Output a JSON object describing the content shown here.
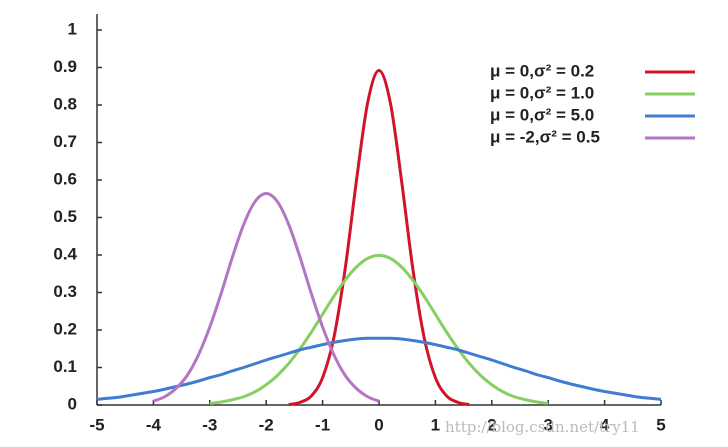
{
  "chart_data": {
    "type": "line",
    "x": [
      -5,
      -4.8,
      -4.6,
      -4.4,
      -4.2,
      -4,
      -3.8,
      -3.6,
      -3.4,
      -3.2,
      -3,
      -2.8,
      -2.6,
      -2.4,
      -2.2,
      -2,
      -1.8,
      -1.6,
      -1.4,
      -1.2,
      -1,
      -0.8,
      -0.6,
      -0.4,
      -0.2,
      0,
      0.2,
      0.4,
      0.6,
      0.8,
      1,
      1.2,
      1.4,
      1.6,
      1.8,
      2,
      2.2,
      2.4,
      2.6,
      2.8,
      3,
      3.2,
      3.4,
      3.6,
      3.8,
      4,
      4.2,
      4.4,
      4.6,
      4.8,
      5
    ],
    "series": [
      {
        "name": "μ = 0,σ² = 0.2",
        "color": "#d2142a",
        "values": [
          null,
          null,
          null,
          null,
          null,
          null,
          null,
          null,
          null,
          null,
          null,
          null,
          null,
          null,
          null,
          null,
          null,
          0.001,
          0.007,
          0.024,
          0.073,
          0.18,
          0.363,
          0.598,
          0.807,
          0.892,
          0.807,
          0.598,
          0.363,
          0.18,
          0.073,
          0.024,
          0.007,
          0.001,
          null,
          null,
          null,
          null,
          null,
          null,
          null,
          null,
          null,
          null,
          null,
          null,
          null,
          null,
          null,
          null,
          null
        ]
      },
      {
        "name": "μ = 0,σ² = 1.0",
        "color": "#86cf62",
        "values": [
          null,
          null,
          null,
          null,
          null,
          null,
          null,
          null,
          null,
          null,
          0.004,
          0.008,
          0.014,
          0.022,
          0.035,
          0.054,
          0.079,
          0.111,
          0.15,
          0.194,
          0.242,
          0.29,
          0.333,
          0.368,
          0.391,
          0.399,
          0.391,
          0.368,
          0.333,
          0.29,
          0.242,
          0.194,
          0.15,
          0.111,
          0.079,
          0.054,
          0.035,
          0.022,
          0.014,
          0.008,
          0.004,
          null,
          null,
          null,
          null,
          null,
          null,
          null,
          null,
          null,
          null
        ]
      },
      {
        "name": "μ = 0,σ² = 5.0",
        "color": "#3f7dd0",
        "values": [
          0.015,
          0.018,
          0.021,
          0.026,
          0.031,
          0.036,
          0.042,
          0.049,
          0.056,
          0.064,
          0.073,
          0.081,
          0.091,
          0.1,
          0.11,
          0.12,
          0.129,
          0.138,
          0.147,
          0.154,
          0.161,
          0.167,
          0.172,
          0.176,
          0.178,
          0.178,
          0.178,
          0.176,
          0.172,
          0.167,
          0.161,
          0.154,
          0.147,
          0.138,
          0.129,
          0.12,
          0.11,
          0.1,
          0.091,
          0.081,
          0.073,
          0.064,
          0.056,
          0.049,
          0.042,
          0.036,
          0.031,
          0.026,
          0.021,
          0.018,
          0.015
        ]
      },
      {
        "name": "μ = -2,σ² = 0.5",
        "color": "#b476c4",
        "values": [
          null,
          null,
          null,
          null,
          null,
          0.01,
          0.022,
          0.044,
          0.079,
          0.134,
          0.208,
          0.297,
          0.394,
          0.481,
          0.542,
          0.564,
          0.542,
          0.481,
          0.394,
          0.297,
          0.208,
          0.134,
          0.079,
          0.044,
          0.022,
          0.01,
          null,
          null,
          null,
          null,
          null,
          null,
          null,
          null,
          null,
          null,
          null,
          null,
          null,
          null,
          null,
          null,
          null,
          null,
          null,
          null,
          null,
          null,
          null,
          null,
          null
        ]
      }
    ],
    "xlim": [
      -5,
      5
    ],
    "xticks": [
      -5,
      -4,
      -3,
      -2,
      -1,
      0,
      1,
      2,
      3,
      4,
      5
    ],
    "ylim": [
      0,
      1
    ],
    "yticks": [
      0,
      0.1,
      0.2,
      0.3,
      0.4,
      0.5,
      0.6,
      0.7,
      0.8,
      0.9,
      1
    ],
    "legend": "upper right",
    "watermark": "http://blog.csdn.net/try11"
  }
}
